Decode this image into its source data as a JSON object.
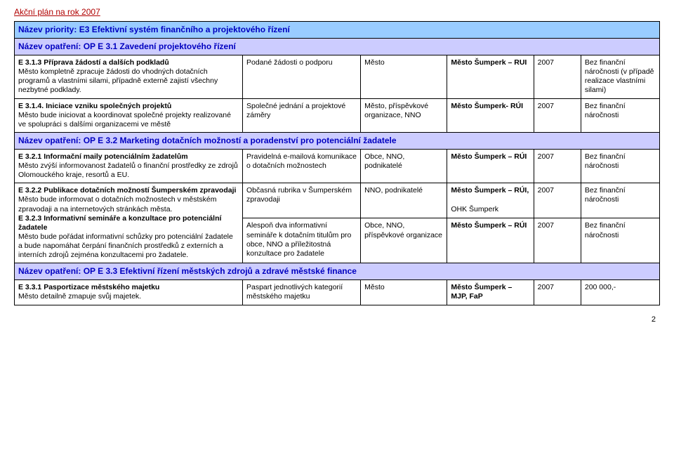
{
  "doc_title": "Akční plán na rok 2007",
  "priority_title": "Název priority: E3 Efektivní systém finančního a projektového řízení",
  "measure1_title": "Název opatření: OP E 3.1 Zavedení projektového řízení",
  "rows1": [
    {
      "act_bold": "E 3.1.3 Příprava žádostí a dalších podkladů",
      "act_text": "Město kompletně zpracuje žádosti do vhodných dotačních programů a vlastními silami, případně externě zajistí všechny nezbytné podklady.",
      "output": "Podané žádosti o podporu",
      "coop": "Město",
      "resp": "Město Šumperk – RUI",
      "term": "2007",
      "cost": "Bez finanční náročnosti (v případě realizace vlastními silami)"
    },
    {
      "act_bold": "E 3.1.4. Iniciace vzniku společných projektů",
      "act_text": "Město bude iniciovat a koordinovat společné projekty realizované ve spolupráci s dalšími organizacemi ve městě",
      "output": "Společné jednání a projektové záměry",
      "coop": "Město, příspěvkové organizace, NNO",
      "resp": "Město Šumperk- RÚI",
      "term": "2007",
      "cost": "Bez finanční náročnosti"
    }
  ],
  "measure2_title": "Název opatření: OP E 3.2 Marketing dotačních možností a poradenství pro potenciální žadatele",
  "rows2": [
    {
      "act_bold": "E 3.2.1 Informační maily potenciálním žadatelům",
      "act_text": "Město zvýší informovanost žadatelů o finanční prostředky ze zdrojů Olomouckého kraje, resortů a EU.",
      "output": "Pravidelná e-mailová komunikace o dotačních možnostech",
      "coop": "Obce, NNO, podnikatelé",
      "resp": "Město Šumperk – RÚI",
      "term": "2007",
      "cost": "Bez finanční náročnosti"
    }
  ],
  "rows2b": [
    {
      "act_bold": "E 3.2.2 Publikace dotačních možností Šumperském zpravodaji",
      "act_text": "Město bude informovat o dotačních možnostech v městském zpravodaji a na internetových stránkách města.",
      "act_bold2": "E 3.2.3 Informativní semináře a konzultace pro potenciální žadatele",
      "act_text2": "Město bude pořádat informativní schůzky pro potenciální žadatele a bude napomáhat čerpání finančních prostředků z externích a interních zdrojů zejména konzultacemi pro žadatele.",
      "output1": "Občasná rubrika v Šumperském zpravodaji",
      "output2": "Alespoň dva informativní semináře k dotačním titulům pro obce, NNO a příležitostná konzultace  pro žadatele",
      "coop1": "NNO, podnikatelé",
      "coop2": "Obce, NNO, příspěvkové organizace",
      "resp1a": "Město Šumperk – RÚI,",
      "resp1b": "OHK Šumperk",
      "resp2": "Město Šumperk – RÚI",
      "term1": "2007",
      "term2": "2007",
      "cost1": "Bez finanční náročnosti",
      "cost2": "Bez finanční náročnosti"
    }
  ],
  "measure3_title": "Název opatření: OP E 3.3 Efektivní řízení městských zdrojů a zdravé městské finance",
  "rows3": [
    {
      "act_bold": "E 3.3.1 Pasportizace městského majetku",
      "act_text": "Město detailně zmapuje svůj majetek.",
      "output": "Paspart jednotlivých kategorií městského majetku",
      "coop": "Město",
      "resp": "Město Šumperk – MJP, FaP",
      "term": "2007",
      "cost": "200 000,-"
    }
  ],
  "page_number": "2"
}
